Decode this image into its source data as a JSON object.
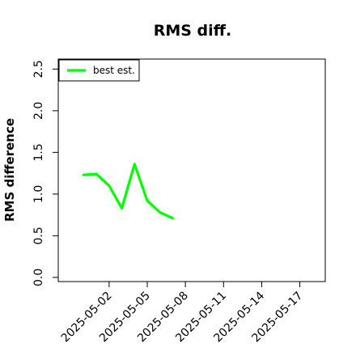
{
  "chart_data": {
    "type": "line",
    "title": "RMS diff.",
    "xlabel": "",
    "ylabel": "RMS difference",
    "x_ticks": [
      "2025-05-02",
      "2025-05-05",
      "2025-05-08",
      "2025-05-11",
      "2025-05-14",
      "2025-05-17"
    ],
    "y_ticks": [
      "0.0",
      "0.5",
      "1.0",
      "1.5",
      "2.0",
      "2.5"
    ],
    "xlim": [
      "2025-04-28",
      "2025-05-19"
    ],
    "ylim": [
      -0.05,
      2.62
    ],
    "grid": false,
    "legend": {
      "placement": "top-left",
      "entries": [
        "best est."
      ]
    },
    "series": [
      {
        "name": "best est.",
        "color": "#00ff00",
        "points": [
          {
            "x": "2025-04-30",
            "y": 1.23
          },
          {
            "x": "2025-05-01",
            "y": 1.24
          },
          {
            "x": "2025-05-02",
            "y": 1.1
          },
          {
            "x": "2025-05-03",
            "y": 0.83
          },
          {
            "x": "2025-05-04",
            "y": 1.36
          },
          {
            "x": "2025-05-05",
            "y": 0.92
          },
          {
            "x": "2025-05-06",
            "y": 0.78
          },
          {
            "x": "2025-05-07",
            "y": 0.71
          }
        ]
      }
    ]
  }
}
